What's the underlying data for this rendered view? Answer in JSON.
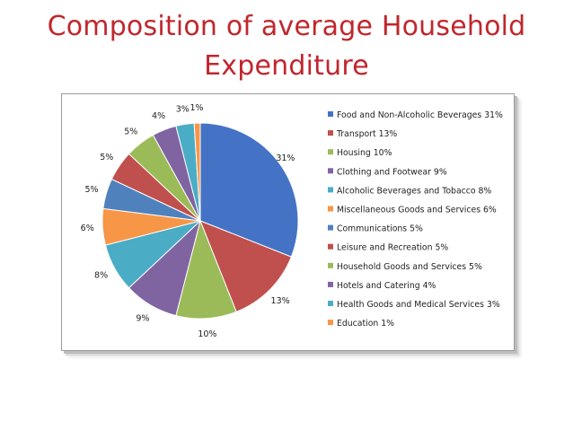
{
  "slide": {
    "title_line1": "Composition of average Household",
    "title_line2": "Expenditure"
  },
  "chart_data": {
    "type": "pie",
    "title": "Composition of average Household Expenditure",
    "legend_position": "right",
    "categories": [
      "Food and Non-Alcoholic Beverages",
      "Transport",
      "Housing",
      "Clothing and Footwear",
      "Alcoholic Beverages and Tobacco",
      "Miscellaneous Goods and Services",
      "Communications",
      "Leisure and Recreation",
      "Household Goods and Services",
      "Hotels and Catering",
      "Health Goods and Medical Services",
      "Education"
    ],
    "values": [
      31,
      13,
      10,
      9,
      8,
      6,
      5,
      5,
      5,
      4,
      3,
      1
    ],
    "data_labels": [
      "31%",
      "13%",
      "10%",
      "9%",
      "8%",
      "6%",
      "5%",
      "5%",
      "5%",
      "4%",
      "3%",
      "1%"
    ],
    "legend_labels": [
      "Food and Non-Alcoholic Beverages 31%",
      "Transport 13%",
      "Housing 10%",
      "Clothing and Footwear 9%",
      "Alcoholic Beverages and Tobacco 8%",
      "Miscellaneous Goods and Services 6%",
      "Communications 5%",
      "Leisure and Recreation 5%",
      "Household Goods and Services 5%",
      "Hotels and Catering 4%",
      "Health Goods and Medical Services 3%",
      "Education 1%"
    ],
    "colors": [
      "#4473c5",
      "#c0504d",
      "#9bbb59",
      "#8064a2",
      "#4bacc6",
      "#f79646",
      "#4f81bd",
      "#c0504d",
      "#9bbb59",
      "#8064a2",
      "#4bacc6",
      "#f79646"
    ]
  }
}
